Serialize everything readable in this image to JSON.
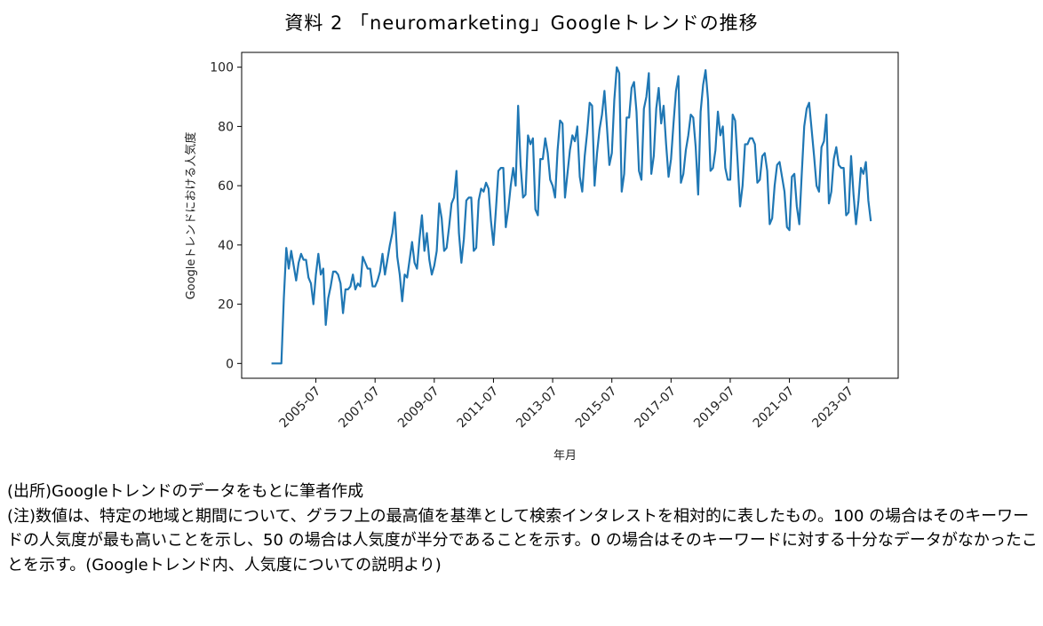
{
  "title": "資料 2 「neuromarketing」Googleトレンドの推移",
  "chart_data": {
    "type": "line",
    "xlabel": "年月",
    "ylabel": "Googleトレンドにおける人気度",
    "ylim": [
      -5,
      105
    ],
    "yticks": [
      0,
      20,
      40,
      60,
      80,
      100
    ],
    "xticks": [
      "2005-07",
      "2007-07",
      "2009-07",
      "2011-07",
      "2013-07",
      "2015-07",
      "2017-07",
      "2019-07",
      "2021-07",
      "2023-07"
    ],
    "x_start": "2004-01",
    "x_end": "2024-03",
    "grid": false,
    "line_color": "#1f77b4",
    "series": [
      {
        "values": [
          0,
          0,
          0,
          0,
          0,
          22,
          39,
          32,
          38,
          33,
          28,
          34,
          37,
          35,
          35,
          29,
          27,
          20,
          30,
          37,
          30,
          32,
          13,
          22,
          26,
          31,
          31,
          30,
          27,
          17,
          25,
          25,
          26,
          30,
          25,
          27,
          26,
          36,
          34,
          32,
          32,
          26,
          26,
          28,
          31,
          37,
          30,
          35,
          40,
          44,
          51,
          36,
          30,
          21,
          30,
          29,
          35,
          41,
          34,
          32,
          42,
          50,
          38,
          44,
          35,
          30,
          33,
          38,
          54,
          49,
          38,
          39,
          46,
          54,
          56,
          65,
          44,
          34,
          42,
          55,
          56,
          56,
          38,
          39,
          55,
          59,
          58,
          61,
          59,
          48,
          40,
          52,
          65,
          66,
          66,
          46,
          52,
          60,
          66,
          60,
          87,
          67,
          56,
          57,
          77,
          74,
          76,
          52,
          50,
          69,
          69,
          76,
          71,
          62,
          60,
          56,
          72,
          82,
          81,
          56,
          64,
          72,
          77,
          75,
          80,
          63,
          58,
          70,
          78,
          88,
          87,
          60,
          71,
          79,
          84,
          92,
          80,
          67,
          71,
          89,
          100,
          98,
          58,
          64,
          83,
          83,
          93,
          95,
          85,
          65,
          62,
          86,
          90,
          98,
          64,
          70,
          86,
          93,
          81,
          87,
          74,
          63,
          69,
          81,
          92,
          97,
          61,
          64,
          72,
          77,
          84,
          83,
          73,
          57,
          85,
          94,
          99,
          89,
          65,
          66,
          72,
          85,
          77,
          80,
          66,
          62,
          62,
          84,
          82,
          68,
          53,
          60,
          74,
          74,
          76,
          76,
          74,
          61,
          62,
          70,
          71,
          65,
          47,
          49,
          60,
          67,
          68,
          63,
          58,
          46,
          45,
          63,
          64,
          53,
          47,
          64,
          80,
          86,
          88,
          79,
          70,
          60,
          58,
          73,
          75,
          84,
          54,
          58,
          69,
          73,
          67,
          66,
          66,
          50,
          51,
          70,
          57,
          47,
          55,
          66,
          64,
          68,
          55,
          48
        ]
      }
    ]
  },
  "notes": [
    "(出所)Googleトレンドのデータをもとに筆者作成",
    "(注)数値は、特定の地域と期間について、グラフ上の最高値を基準として検索インタレストを相対的に表したもの。100 の場合はそのキーワードの人気度が最も高いことを示し、50 の場合は人気度が半分であることを示す。0 の場合はそのキーワードに対する十分なデータがなかったことを示す。(Googleトレンド内、人気度についての説明より)"
  ]
}
